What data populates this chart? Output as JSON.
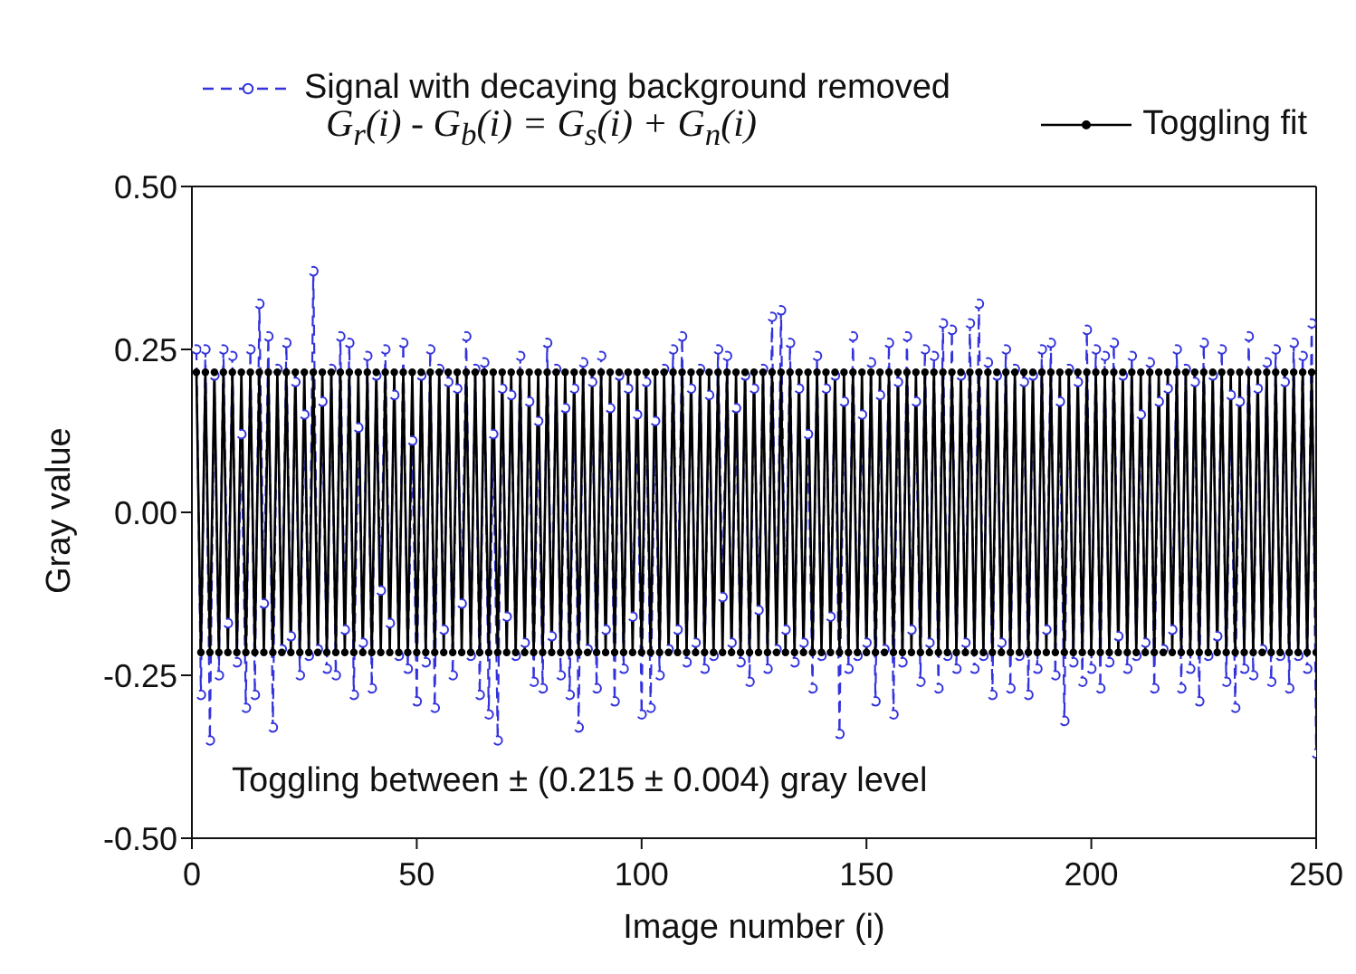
{
  "chart_data": {
    "type": "line",
    "xlabel": "Image number (i)",
    "ylabel": "Gray value",
    "x": [
      1,
      2,
      3,
      4,
      5,
      6,
      7,
      8,
      9,
      10,
      11,
      12,
      13,
      14,
      15,
      16,
      17,
      18,
      19,
      20,
      21,
      22,
      23,
      24,
      25,
      26,
      27,
      28,
      29,
      30,
      31,
      32,
      33,
      34,
      35,
      36,
      37,
      38,
      39,
      40,
      41,
      42,
      43,
      44,
      45,
      46,
      47,
      48,
      49,
      50,
      51,
      52,
      53,
      54,
      55,
      56,
      57,
      58,
      59,
      60,
      61,
      62,
      63,
      64,
      65,
      66,
      67,
      68,
      69,
      70,
      71,
      72,
      73,
      74,
      75,
      76,
      77,
      78,
      79,
      80,
      81,
      82,
      83,
      84,
      85,
      86,
      87,
      88,
      89,
      90,
      91,
      92,
      93,
      94,
      95,
      96,
      97,
      98,
      99,
      100,
      101,
      102,
      103,
      104,
      105,
      106,
      107,
      108,
      109,
      110,
      111,
      112,
      113,
      114,
      115,
      116,
      117,
      118,
      119,
      120,
      121,
      122,
      123,
      124,
      125,
      126,
      127,
      128,
      129,
      130,
      131,
      132,
      133,
      134,
      135,
      136,
      137,
      138,
      139,
      140,
      141,
      142,
      143,
      144,
      145,
      146,
      147,
      148,
      149,
      150,
      151,
      152,
      153,
      154,
      155,
      156,
      157,
      158,
      159,
      160,
      161,
      162,
      163,
      164,
      165,
      166,
      167,
      168,
      169,
      170,
      171,
      172,
      173,
      174,
      175,
      176,
      177,
      178,
      179,
      180,
      181,
      182,
      183,
      184,
      185,
      186,
      187,
      188,
      189,
      190,
      191,
      192,
      193,
      194,
      195,
      196,
      197,
      198,
      199,
      200,
      201,
      202,
      203,
      204,
      205,
      206,
      207,
      208,
      209,
      210,
      211,
      212,
      213,
      214,
      215,
      216,
      217,
      218,
      219,
      220,
      221,
      222,
      223,
      224,
      225,
      226,
      227,
      228,
      229,
      230,
      231,
      232,
      233,
      234,
      235,
      236,
      237,
      238,
      239,
      240,
      241,
      242,
      243,
      244,
      245,
      246,
      247,
      248,
      249,
      250
    ],
    "series": [
      {
        "name": "Signal with decaying background removed",
        "color": "#3333dd",
        "line_style": "dashed",
        "marker": "circle",
        "values": [
          0.25,
          -0.28,
          0.25,
          -0.35,
          0.21,
          -0.25,
          0.25,
          -0.17,
          0.24,
          -0.23,
          0.12,
          -0.3,
          0.25,
          -0.28,
          0.32,
          -0.14,
          0.27,
          -0.33,
          0.22,
          -0.21,
          0.26,
          -0.19,
          0.2,
          -0.25,
          0.15,
          -0.22,
          0.37,
          -0.21,
          0.17,
          -0.24,
          0.22,
          -0.25,
          0.27,
          -0.18,
          0.26,
          -0.28,
          0.13,
          -0.2,
          0.24,
          -0.27,
          0.21,
          -0.12,
          0.25,
          -0.17,
          0.18,
          -0.22,
          0.26,
          -0.24,
          0.11,
          -0.29,
          0.21,
          -0.23,
          0.25,
          -0.3,
          0.22,
          -0.18,
          0.2,
          -0.25,
          0.19,
          -0.14,
          0.27,
          -0.22,
          0.22,
          -0.28,
          0.23,
          -0.31,
          0.12,
          -0.35,
          0.19,
          -0.16,
          0.18,
          -0.22,
          0.24,
          -0.2,
          0.17,
          -0.26,
          0.14,
          -0.27,
          0.26,
          -0.19,
          0.22,
          -0.25,
          0.16,
          -0.28,
          0.19,
          -0.33,
          0.23,
          -0.21,
          0.2,
          -0.27,
          0.24,
          -0.18,
          0.16,
          -0.29,
          0.21,
          -0.24,
          0.19,
          -0.16,
          0.15,
          -0.31,
          0.2,
          -0.3,
          0.14,
          -0.25,
          0.22,
          -0.21,
          0.25,
          -0.18,
          0.27,
          -0.23,
          0.19,
          -0.2,
          0.22,
          -0.24,
          0.18,
          -0.22,
          0.25,
          -0.13,
          0.24,
          -0.2,
          0.16,
          -0.23,
          0.21,
          -0.26,
          0.19,
          -0.15,
          0.22,
          -0.24,
          0.3,
          -0.21,
          0.31,
          -0.18,
          0.26,
          -0.23,
          0.19,
          -0.2,
          0.12,
          -0.27,
          0.24,
          -0.22,
          0.19,
          -0.16,
          0.21,
          -0.34,
          0.17,
          -0.24,
          0.27,
          -0.22,
          0.15,
          -0.2,
          0.23,
          -0.29,
          0.18,
          -0.21,
          0.26,
          -0.31,
          0.2,
          -0.23,
          0.27,
          -0.18,
          0.17,
          -0.26,
          0.25,
          -0.2,
          0.24,
          -0.27,
          0.29,
          -0.22,
          0.28,
          -0.24,
          0.21,
          -0.2,
          0.29,
          -0.24,
          0.32,
          -0.22,
          0.23,
          -0.28,
          0.21,
          -0.2,
          0.25,
          -0.27,
          0.22,
          -0.22,
          0.2,
          -0.28,
          0.21,
          -0.24,
          0.25,
          -0.18,
          0.26,
          -0.25,
          0.17,
          -0.32,
          0.22,
          -0.23,
          0.2,
          -0.26,
          0.28,
          -0.24,
          0.25,
          -0.27,
          0.24,
          -0.23,
          0.26,
          -0.19,
          0.21,
          -0.24,
          0.24,
          -0.22,
          0.15,
          -0.2,
          0.23,
          -0.27,
          0.17,
          -0.21,
          0.19,
          -0.18,
          0.25,
          -0.27,
          0.22,
          -0.24,
          0.2,
          -0.29,
          0.26,
          -0.22,
          0.21,
          -0.19,
          0.25,
          -0.26,
          0.18,
          -0.3,
          0.17,
          -0.24,
          0.27,
          -0.25,
          0.19,
          -0.21,
          0.23,
          -0.26,
          0.25,
          -0.22,
          0.2,
          -0.27,
          0.26,
          -0.22,
          0.24,
          -0.24,
          0.29,
          -0.37
        ]
      },
      {
        "name": "Toggling fit",
        "color": "#000000",
        "line_style": "solid",
        "marker": "circle",
        "values": [
          0.215,
          -0.215,
          0.215,
          -0.215,
          0.215,
          -0.215,
          0.215,
          -0.215,
          0.215,
          -0.215,
          0.215,
          -0.215,
          0.215,
          -0.215,
          0.215,
          -0.215,
          0.215,
          -0.215,
          0.215,
          -0.215,
          0.215,
          -0.215,
          0.215,
          -0.215,
          0.215,
          -0.215,
          0.215,
          -0.215,
          0.215,
          -0.215,
          0.215,
          -0.215,
          0.215,
          -0.215,
          0.215,
          -0.215,
          0.215,
          -0.215,
          0.215,
          -0.215,
          0.215,
          -0.215,
          0.215,
          -0.215,
          0.215,
          -0.215,
          0.215,
          -0.215,
          0.215,
          -0.215,
          0.215,
          -0.215,
          0.215,
          -0.215,
          0.215,
          -0.215,
          0.215,
          -0.215,
          0.215,
          -0.215,
          0.215,
          -0.215,
          0.215,
          -0.215,
          0.215,
          -0.215,
          0.215,
          -0.215,
          0.215,
          -0.215,
          0.215,
          -0.215,
          0.215,
          -0.215,
          0.215,
          -0.215,
          0.215,
          -0.215,
          0.215,
          -0.215,
          0.215,
          -0.215,
          0.215,
          -0.215,
          0.215,
          -0.215,
          0.215,
          -0.215,
          0.215,
          -0.215,
          0.215,
          -0.215,
          0.215,
          -0.215,
          0.215,
          -0.215,
          0.215,
          -0.215,
          0.215,
          -0.215,
          0.215,
          -0.215,
          0.215,
          -0.215,
          0.215,
          -0.215,
          0.215,
          -0.215,
          0.215,
          -0.215,
          0.215,
          -0.215,
          0.215,
          -0.215,
          0.215,
          -0.215,
          0.215,
          -0.215,
          0.215,
          -0.215,
          0.215,
          -0.215,
          0.215,
          -0.215,
          0.215,
          -0.215,
          0.215,
          -0.215,
          0.215,
          -0.215,
          0.215,
          -0.215,
          0.215,
          -0.215,
          0.215,
          -0.215,
          0.215,
          -0.215,
          0.215,
          -0.215,
          0.215,
          -0.215,
          0.215,
          -0.215,
          0.215,
          -0.215,
          0.215,
          -0.215,
          0.215,
          -0.215,
          0.215,
          -0.215,
          0.215,
          -0.215,
          0.215,
          -0.215,
          0.215,
          -0.215,
          0.215,
          -0.215,
          0.215,
          -0.215,
          0.215,
          -0.215,
          0.215,
          -0.215,
          0.215,
          -0.215,
          0.215,
          -0.215,
          0.215,
          -0.215,
          0.215,
          -0.215,
          0.215,
          -0.215,
          0.215,
          -0.215,
          0.215,
          -0.215,
          0.215,
          -0.215,
          0.215,
          -0.215,
          0.215,
          -0.215,
          0.215,
          -0.215,
          0.215,
          -0.215,
          0.215,
          -0.215,
          0.215,
          -0.215,
          0.215,
          -0.215,
          0.215,
          -0.215,
          0.215,
          -0.215,
          0.215,
          -0.215,
          0.215,
          -0.215,
          0.215,
          -0.215,
          0.215,
          -0.215,
          0.215,
          -0.215,
          0.215,
          -0.215,
          0.215,
          -0.215,
          0.215,
          -0.215,
          0.215,
          -0.215,
          0.215,
          -0.215,
          0.215,
          -0.215,
          0.215,
          -0.215,
          0.215,
          -0.215,
          0.215,
          -0.215,
          0.215,
          -0.215,
          0.215,
          -0.215,
          0.215,
          -0.215,
          0.215,
          -0.215,
          0.215,
          -0.215,
          0.215,
          -0.215,
          0.215,
          -0.215,
          0.215,
          -0.215,
          0.215,
          -0.215,
          0.215,
          -0.215,
          0.215,
          -0.215
        ]
      }
    ],
    "xlim": [
      0,
      250
    ],
    "xticks": [
      0,
      50,
      100,
      150,
      200,
      250
    ],
    "ylim": [
      -0.5,
      0.5
    ],
    "yticks": [
      {
        "value": -0.5,
        "label": "-0.50"
      },
      {
        "value": -0.25,
        "label": "-0.25"
      },
      {
        "value": 0,
        "label": "0.00"
      },
      {
        "value": 0.25,
        "label": "0.25"
      },
      {
        "value": 0.5,
        "label": "0.50"
      }
    ],
    "legend": "top",
    "grid": false,
    "annotations": [
      "G$_{r}$(i) - G$_{b}$(i) = G$_{s}$(i) + G$_{n}$(i)",
      "Toggling between ± (0.215 ± 0.004) gray level"
    ]
  }
}
